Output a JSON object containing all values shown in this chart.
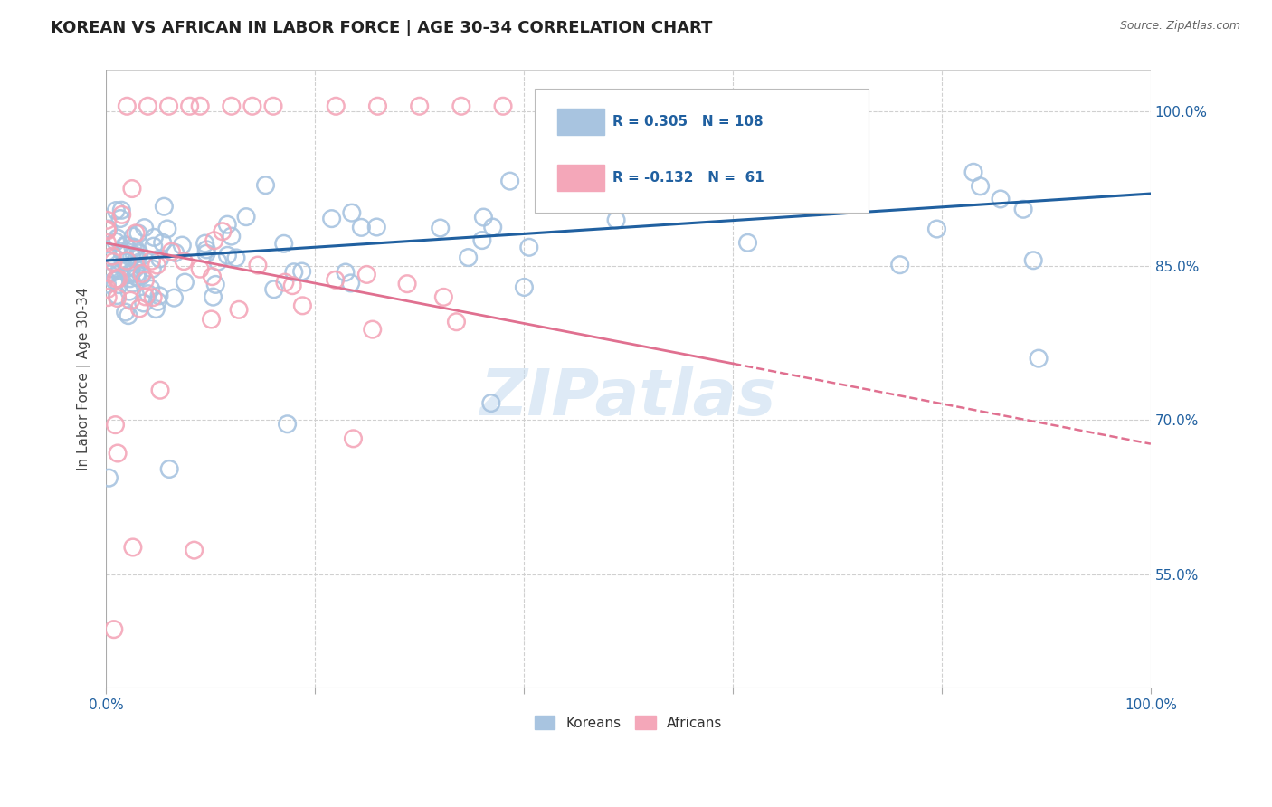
{
  "title": "KOREAN VS AFRICAN IN LABOR FORCE | AGE 30-34 CORRELATION CHART",
  "source": "Source: ZipAtlas.com",
  "ylabel": "In Labor Force | Age 30-34",
  "xlim": [
    0.0,
    1.0
  ],
  "ylim": [
    0.44,
    1.04
  ],
  "yticks": [
    0.55,
    0.7,
    0.85,
    1.0
  ],
  "ytick_labels": [
    "55.0%",
    "70.0%",
    "85.0%",
    "100.0%"
  ],
  "xticks": [
    0.0,
    0.2,
    0.4,
    0.6,
    0.8,
    1.0
  ],
  "xtick_labels": [
    "0.0%",
    "",
    "",
    "",
    "",
    "100.0%"
  ],
  "korean_R": 0.305,
  "korean_N": 108,
  "african_R": -0.132,
  "african_N": 61,
  "korean_color": "#a8c4e0",
  "african_color": "#f4a7b9",
  "korean_line_color": "#2060a0",
  "african_line_color": "#e07090",
  "background_color": "#ffffff",
  "grid_color": "#d0d0d0",
  "title_color": "#222222",
  "axis_label_color": "#2060a0",
  "watermark_color": "#c8ddf0"
}
